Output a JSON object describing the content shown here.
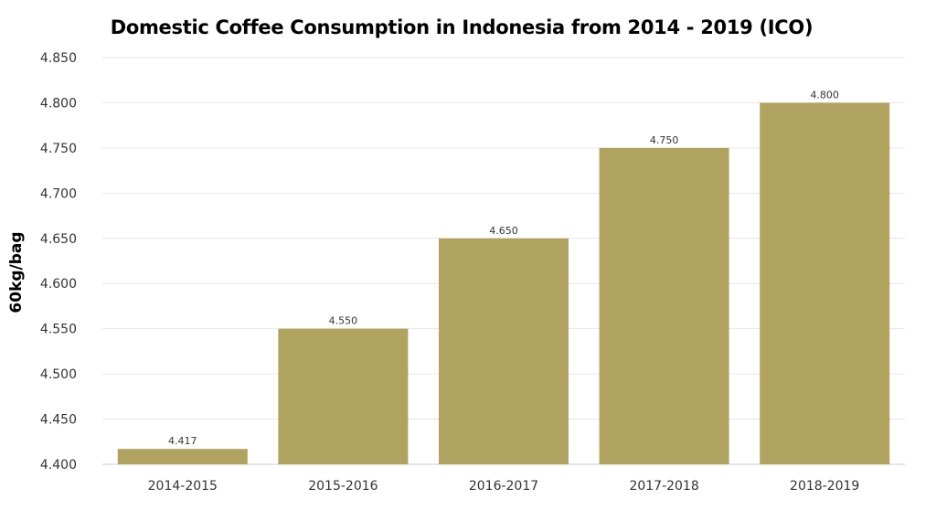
{
  "chart_data": {
    "type": "bar",
    "title": "Domestic Coffee Consumption in Indonesia from 2014 -  2019 (ICO)",
    "ylabel": "60kg/bag",
    "xlabel": "",
    "categories": [
      "2014-2015",
      "2015-2016",
      "2016-2017",
      "2017-2018",
      "2018-2019"
    ],
    "values": [
      4.417,
      4.55,
      4.65,
      4.75,
      4.8
    ],
    "value_labels": [
      "4.417",
      "4.550",
      "4.650",
      "4.750",
      "4.800"
    ],
    "ylim": [
      4.4,
      4.85
    ],
    "yticks": [
      "4.400",
      "4.450",
      "4.500",
      "4.550",
      "4.600",
      "4.650",
      "4.700",
      "4.750",
      "4.800",
      "4.850"
    ],
    "grid": true,
    "bar_color": "#b0a35f"
  }
}
